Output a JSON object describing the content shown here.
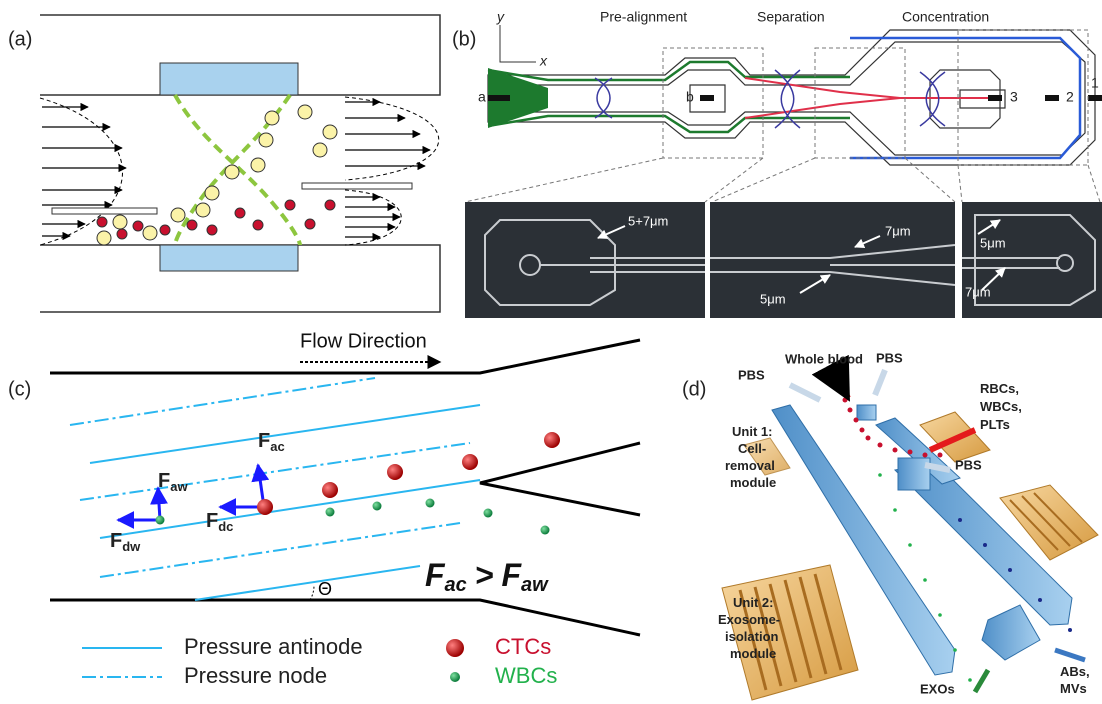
{
  "panels": {
    "a": {
      "label": "(a)"
    },
    "b": {
      "label": "(b)",
      "axis_y": "y",
      "axis_x": "x",
      "stages": [
        "Pre-alignment",
        "Separation",
        "Concentration"
      ],
      "outlets": [
        "a",
        "b",
        "3",
        "2",
        "1"
      ],
      "photo_labels": [
        "5+7μm",
        "7μm",
        "5μm",
        "5μm",
        "7μm"
      ]
    },
    "c": {
      "label": "(c)",
      "flow": "Flow Direction",
      "forces": [
        {
          "main": "F",
          "sub": "ac"
        },
        {
          "main": "F",
          "sub": "aw"
        },
        {
          "main": "F",
          "sub": "dw"
        },
        {
          "main": "F",
          "sub": "dc"
        }
      ],
      "angle": "Θ",
      "inequality": {
        "left_main": "F",
        "left_sub": "ac",
        "op": ">",
        "right_main": "F",
        "right_sub": "aw"
      },
      "legend": [
        "Pressure antinode",
        "Pressure node",
        "CTCs",
        "WBCs"
      ]
    },
    "d": {
      "label": "(d)",
      "whole_blood": "Whole blood",
      "pbs": [
        "PBS",
        "PBS",
        "PBS"
      ],
      "waste": [
        "RBCs,",
        "WBCs,",
        "PLTs"
      ],
      "unit1": [
        "Unit 1:",
        "Cell-",
        "removal",
        "module"
      ],
      "unit2": [
        "Unit 2:",
        "Exosome-",
        "isolation",
        "module"
      ],
      "exos": "EXOs",
      "abs": [
        "ABs,",
        "MVs"
      ]
    }
  }
}
